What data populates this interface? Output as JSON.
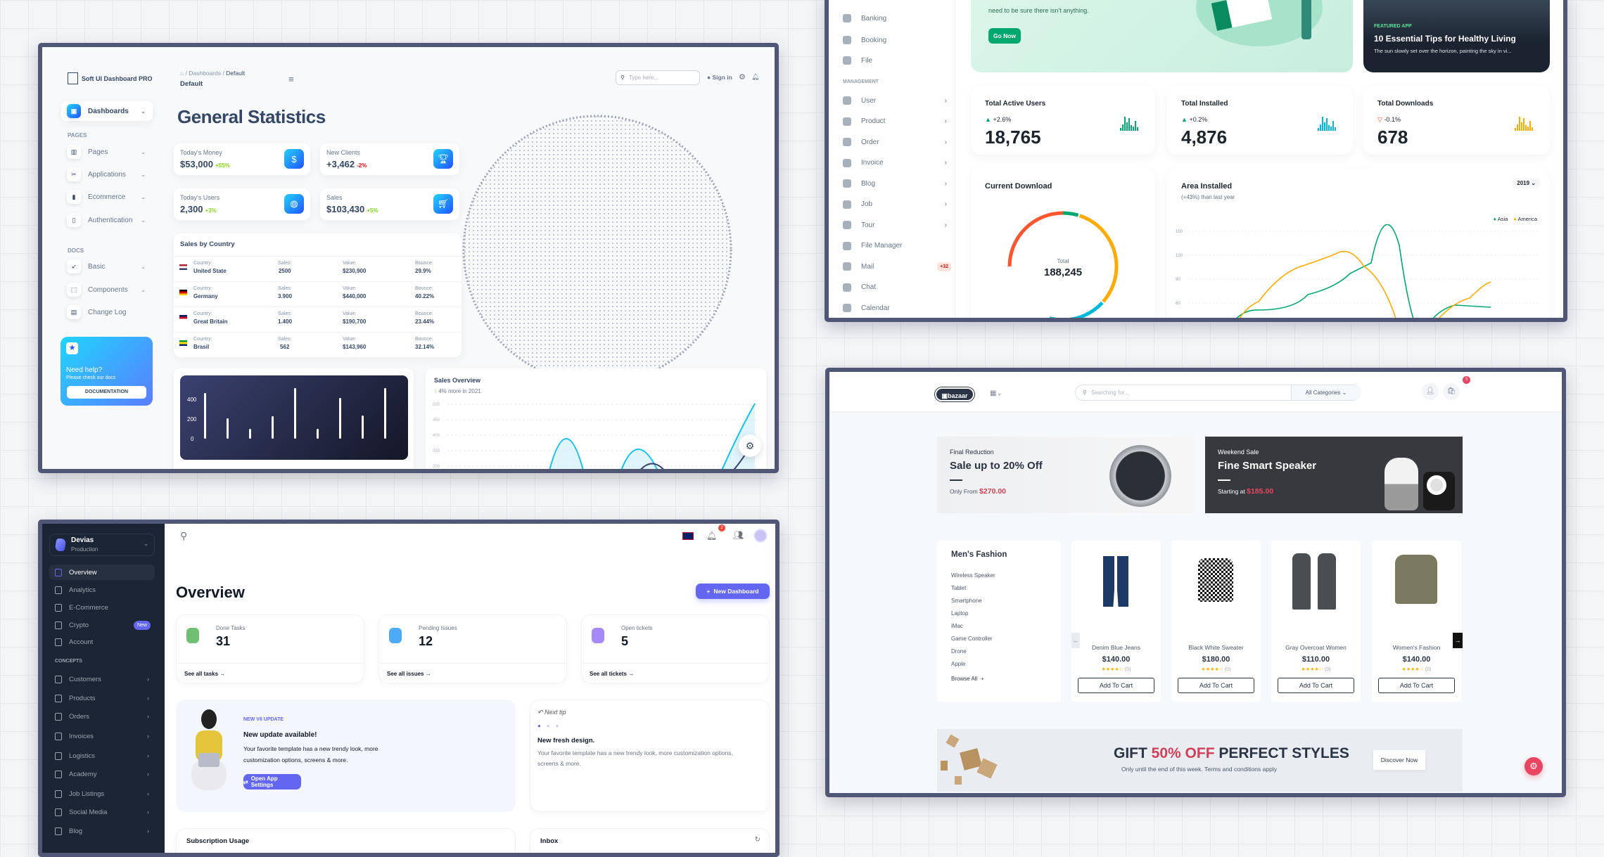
{
  "soft_ui": {
    "brand": "Soft UI Dashboard PRO",
    "breadcrumb": [
      "Dashboards",
      "Default"
    ],
    "page_name": "Default",
    "search_placeholder": "Type here...",
    "sign_in": "Sign in",
    "nav_active": "Dashboards",
    "section_pages": "PAGES",
    "pages": [
      "Pages",
      "Applications",
      "Ecommerce",
      "Authentication"
    ],
    "section_docs": "DOCS",
    "docs": [
      "Basic",
      "Components",
      "Change Log"
    ],
    "help": {
      "title": "Need help?",
      "subtitle": "Please check our docs",
      "button": "DOCUMENTATION"
    },
    "title": "General Statistics",
    "stats": [
      {
        "label": "Today's Money",
        "value": "$53,000",
        "change": "+55%",
        "positive": true
      },
      {
        "label": "New Clients",
        "value": "+3,462",
        "change": "-2%",
        "positive": false
      },
      {
        "label": "Today's Users",
        "value": "2,300",
        "change": "+3%",
        "positive": true
      },
      {
        "label": "Sales",
        "value": "$103,430",
        "change": "+5%",
        "positive": true
      }
    ],
    "sales_by_country": {
      "title": "Sales by Country",
      "headers": [
        "Country:",
        "Sales:",
        "Value:",
        "Bounce:"
      ],
      "rows": [
        [
          "United State",
          "2500",
          "$230,900",
          "29.9%"
        ],
        [
          "Germany",
          "3.900",
          "$440,000",
          "40.22%"
        ],
        [
          "Great Britain",
          "1.400",
          "$190,700",
          "23.44%"
        ],
        [
          "Brasil",
          "562",
          "$143,960",
          "32.14%"
        ]
      ]
    },
    "bar_chart": {
      "yticks": [
        "400",
        "200",
        "0"
      ],
      "values": [
        450,
        200,
        100,
        220,
        500,
        100,
        400,
        230,
        500
      ],
      "max": 500
    },
    "sales_overview": {
      "title": "Sales Overview",
      "subtitle": "4% more in 2021",
      "yticks": [
        "500",
        "450",
        "400",
        "350",
        "300"
      ]
    }
  },
  "minimal": {
    "sidebar_top": [
      "Banking",
      "Booking",
      "File"
    ],
    "section": "MANAGEMENT",
    "items": [
      {
        "label": "User",
        "chev": true
      },
      {
        "label": "Product",
        "chev": true
      },
      {
        "label": "Order",
        "chev": true
      },
      {
        "label": "Invoice",
        "chev": true
      },
      {
        "label": "Blog",
        "chev": true
      },
      {
        "label": "Job",
        "chev": true
      },
      {
        "label": "Tour",
        "chev": true
      },
      {
        "label": "File Manager"
      },
      {
        "label": "Mail",
        "badge": "+32"
      },
      {
        "label": "Chat"
      },
      {
        "label": "Calendar"
      }
    ],
    "banner_text": "need to be sure there isn't anything.",
    "go_now": "Go Now",
    "featured": {
      "tag": "FEATURED APP",
      "title": "10 Essential Tips for Healthy Living",
      "text": "The sun slowly set over the horizon, painting the sky in vi..."
    },
    "stats": [
      {
        "title": "Total Active Users",
        "change": "+2.6%",
        "value": "18,765",
        "color": "#00a76f",
        "up": true
      },
      {
        "title": "Total Installed",
        "change": "+0.2%",
        "value": "4,876",
        "color": "#00b8d9",
        "up": true
      },
      {
        "title": "Total Downloads",
        "change": "-0.1%",
        "value": "678",
        "color": "#ffab00",
        "up": false
      }
    ],
    "current_download": {
      "title": "Current Download",
      "total_label": "Total",
      "total": "188,245"
    },
    "area_installed": {
      "title": "Area Installed",
      "subtitle": "(+43%) than last year",
      "year": "2019",
      "legend": [
        {
          "name": "Asia",
          "color": "#00a76f"
        },
        {
          "name": "America",
          "color": "#ffab00"
        }
      ],
      "yticks": [
        "150",
        "120",
        "90",
        "60"
      ]
    }
  },
  "devias": {
    "org": "Devias",
    "env": "Production",
    "nav": [
      {
        "label": "Overview",
        "active": true
      },
      {
        "label": "Analytics"
      },
      {
        "label": "E-Commerce"
      },
      {
        "label": "Crypto",
        "badge": "New"
      },
      {
        "label": "Account"
      }
    ],
    "section": "CONCEPTS",
    "concepts": [
      "Customers",
      "Products",
      "Orders",
      "Invoices",
      "Logistics",
      "Academy",
      "Job Listings",
      "Social Media",
      "Blog"
    ],
    "notif_count": "2",
    "title": "Overview",
    "new_dashboard": "New Dashboard",
    "cards": [
      {
        "label": "Done Tasks",
        "value": "31",
        "link": "See all tasks",
        "color": "#4caf50"
      },
      {
        "label": "Pending Issues",
        "value": "12",
        "link": "See all issues",
        "color": "#2196f3"
      },
      {
        "label": "Open tickets",
        "value": "5",
        "link": "See all tickets",
        "color": "#8e6cf5"
      }
    ],
    "update": {
      "tag": "NEW V6 UPDATE",
      "title": "New update available!",
      "text": "Your favorite template has a new trendy look, more customization options, screens & more.",
      "button": "Open App Settings"
    },
    "tip": {
      "label": "Next tip",
      "title": "New fresh design.",
      "text": "Your favorite template has a new trendy look, more customization options, screens & more."
    },
    "bottom": [
      "Subscription Usage",
      "Inbox"
    ]
  },
  "bazaar": {
    "logo": "bazaar",
    "search_placeholder": "Searching for...",
    "category": "All Categories",
    "cart_count": "3",
    "banner1": {
      "kicker": "Final Reduction",
      "title": "Sale up to 20% Off",
      "prefix": "Only From",
      "price": "$270.00"
    },
    "banner2": {
      "kicker": "Weekend Sale",
      "title": "Fine Smart Speaker",
      "prefix": "Starting at",
      "price": "$185.00"
    },
    "category_title": "Men's Fashion",
    "categories": [
      "Wireless Speaker",
      "Tablet",
      "Smartphone",
      "Laptop",
      "iMac",
      "Game Controller",
      "Drone",
      "Apple"
    ],
    "browse_all": "Browse All",
    "products": [
      {
        "name": "Denim Blue Jeans",
        "price": "$140.00",
        "rating": 4,
        "reviews": "(0)"
      },
      {
        "name": "Black White Sweater",
        "price": "$180.00",
        "rating": 4,
        "reviews": "(0)"
      },
      {
        "name": "Gray Overcoat Women",
        "price": "$110.00",
        "rating": 4,
        "reviews": "(0)"
      },
      {
        "name": "Women's Fashion",
        "price": "$140.00",
        "rating": 4,
        "reviews": "(0)"
      }
    ],
    "add_to_cart": "Add To Cart",
    "gift": {
      "pre": "GIFT",
      "highlight": "50% OFF",
      "post": "PERFECT STYLES",
      "sub": "Only until the end of this week. Terms and conditions apply",
      "button": "Discover Now"
    },
    "accent": "#d23f57"
  }
}
